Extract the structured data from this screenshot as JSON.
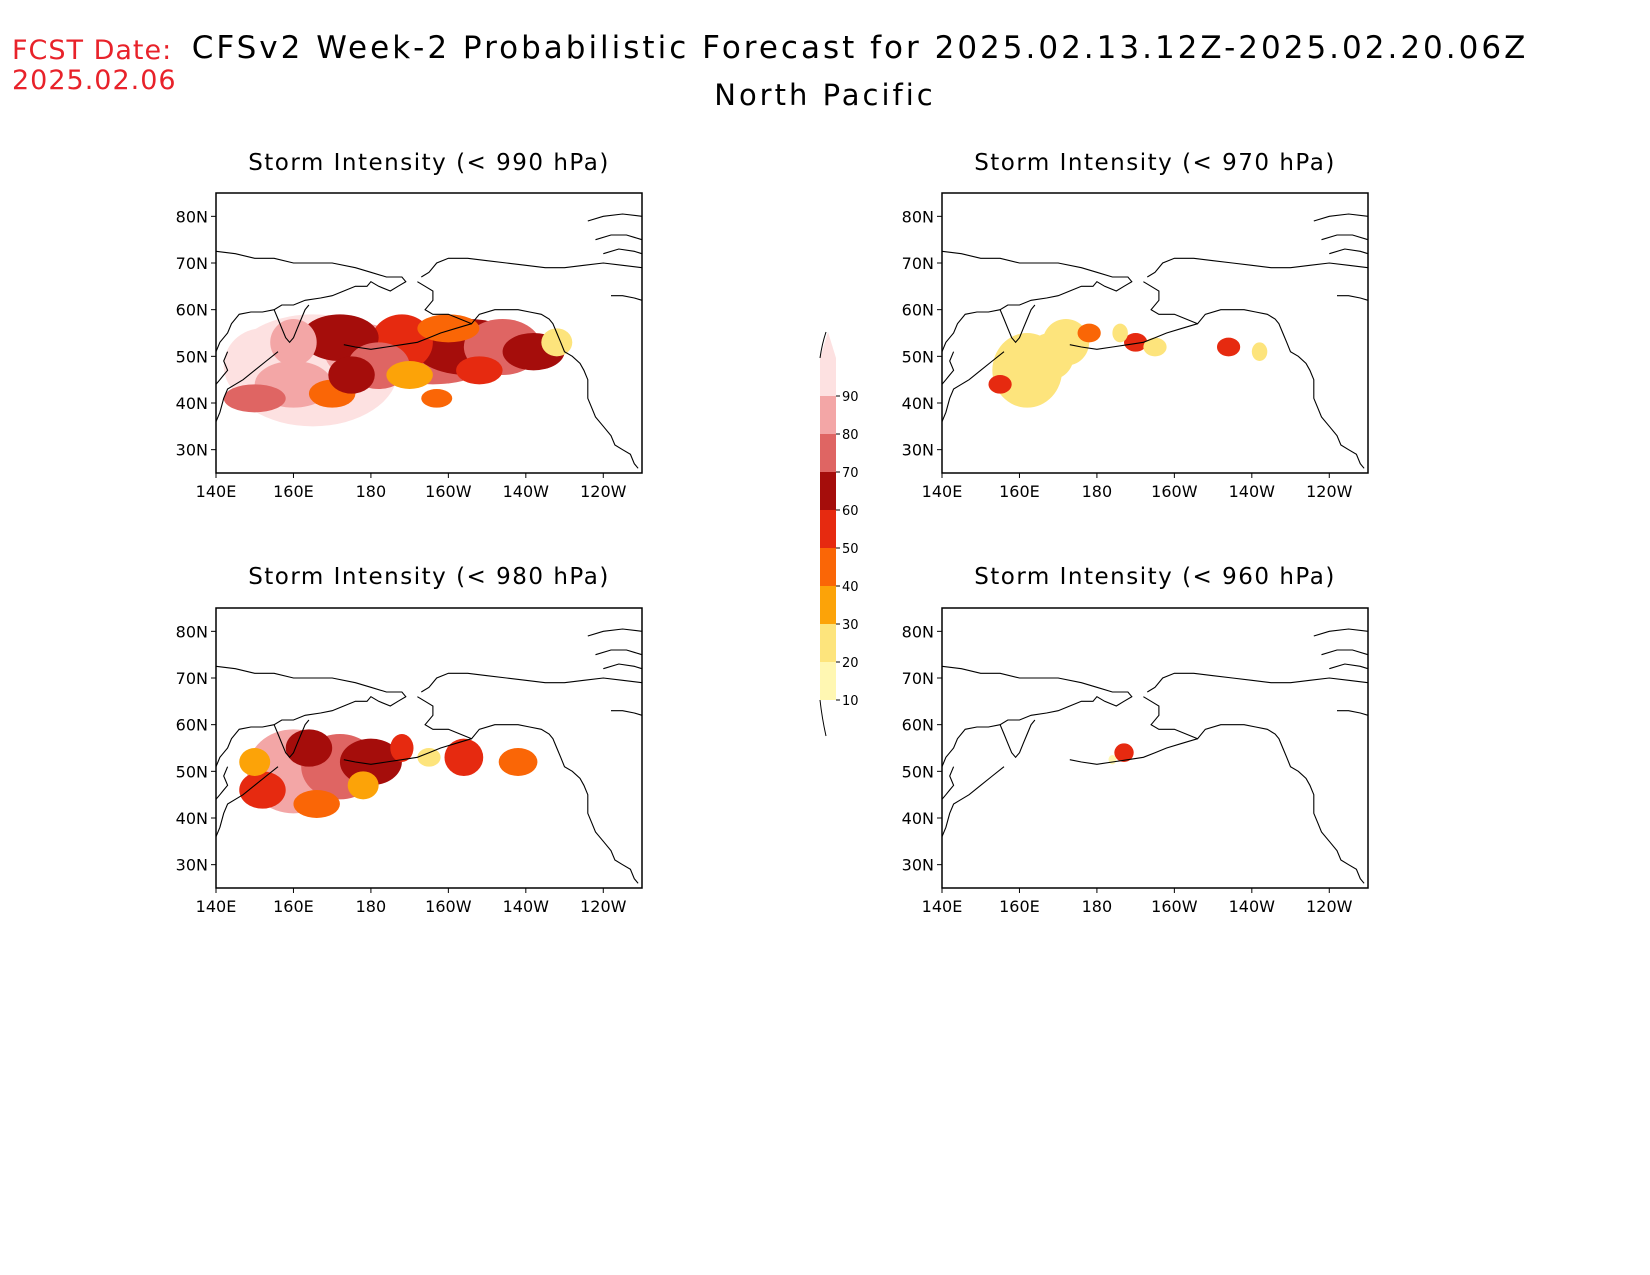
{
  "header": {
    "fcst_label": "FCST Date:",
    "fcst_date": "2025.02.06",
    "title": "CFSv2 Week-2 Probabilistic Forecast for 2025.02.13.12Z-2025.02.20.06Z",
    "subtitle": "North Pacific"
  },
  "axes": {
    "lat_ticks": [
      "80N",
      "70N",
      "60N",
      "50N",
      "40N",
      "30N"
    ],
    "lon_ticks": [
      "140E",
      "160E",
      "180",
      "160W",
      "140W",
      "120W"
    ]
  },
  "panels": [
    {
      "id": "p990",
      "title": "Storm Intensity (< 990 hPa)"
    },
    {
      "id": "p970",
      "title": "Storm Intensity (< 970 hPa)"
    },
    {
      "id": "p980",
      "title": "Storm Intensity (< 980 hPa)"
    },
    {
      "id": "p960",
      "title": "Storm Intensity (< 960 hPa)"
    }
  ],
  "colorbar": {
    "levels": [
      "10",
      "20",
      "30",
      "40",
      "50",
      "60",
      "70",
      "80",
      "90"
    ],
    "colors": [
      "#fff7b2",
      "#fde47c",
      "#fca308",
      "#fa6606",
      "#e62a10",
      "#a50d0b",
      "#df6563",
      "#f3a6a6",
      "#fde1e1"
    ]
  },
  "chart_data": {
    "type": "heatmap",
    "units": "probability (%)",
    "lon_range": [
      "140E",
      "110W"
    ],
    "lat_range": [
      "25N",
      "85N"
    ]
  }
}
